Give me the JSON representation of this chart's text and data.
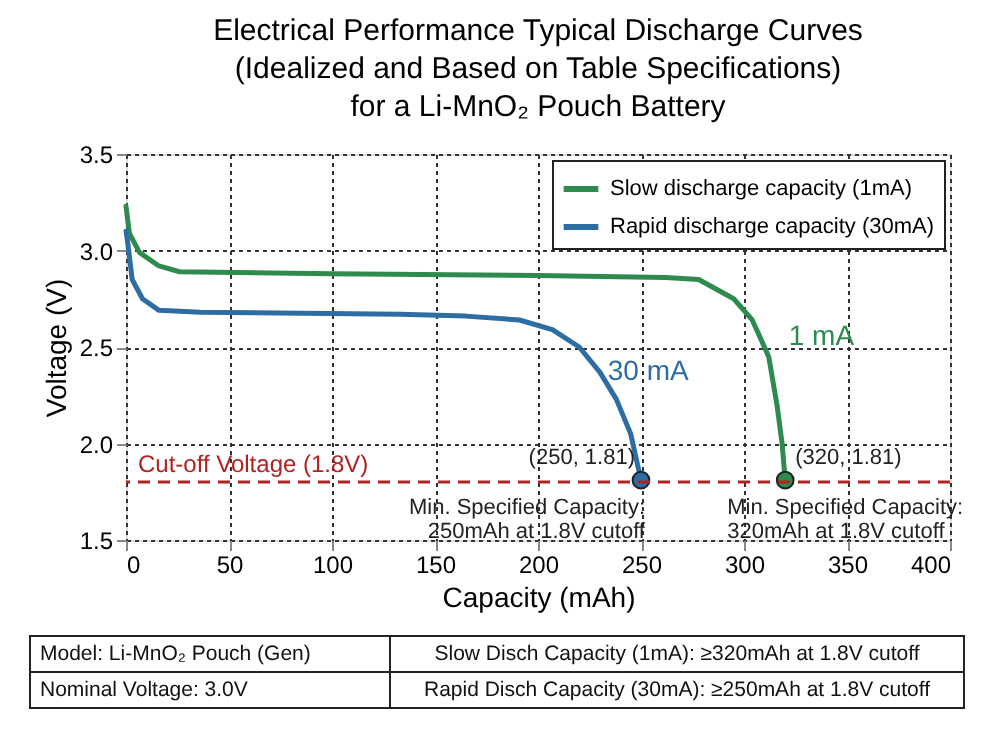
{
  "chart_data": {
    "type": "line",
    "title": "Electrical Performance Typical Discharge Curves\n(Idealized and Based on Table Specifications)\nfor a Li-MnO₂ Pouch Battery",
    "xlabel": "Capacity (mAh)",
    "ylabel": "Voltage (V)",
    "xlim": [
      0,
      400
    ],
    "xticks": [
      0,
      50,
      100,
      150,
      200,
      250,
      300,
      350,
      400
    ],
    "ylim": [
      1.5,
      3.5
    ],
    "yticks": [
      1.5,
      {
        "value": 2,
        "label": "2.0"
      },
      2.5,
      {
        "value": 3,
        "label": "3.0"
      },
      3.5
    ],
    "grid": true,
    "legend": "top right",
    "line_style": "solid",
    "marker": "none",
    "series": [
      {
        "name": "Slow discharge capacity (1mA)",
        "color": "#2e8b4e",
        "x": [
          0,
          1.6,
          6.5,
          16,
          26,
          100,
          200,
          262,
          278,
          295,
          304,
          312,
          316,
          318.5,
          320
        ],
        "values": [
          3.23,
          3.09,
          2.99,
          2.92,
          2.89,
          2.88,
          2.87,
          2.86,
          2.85,
          2.75,
          2.64,
          2.45,
          2.2,
          2.0,
          1.81
        ]
      },
      {
        "name": "Rapid discharge capacity (30mA)",
        "color": "#2e6da4",
        "x": [
          0,
          0.6,
          3,
          8,
          16,
          36,
          133,
          165,
          191,
          207,
          220,
          230,
          238,
          245,
          250
        ],
        "values": [
          3.1,
          3.06,
          2.85,
          2.75,
          2.69,
          2.68,
          2.67,
          2.66,
          2.64,
          2.59,
          2.5,
          2.37,
          2.23,
          2.05,
          1.81
        ]
      },
      {
        "type": "scatter",
        "marker": "circle",
        "x": [
          250,
          320
        ],
        "values": [
          1.81,
          1.81
        ],
        "colors": [
          "#2e6da4",
          "#2e8b4e"
        ]
      }
    ],
    "ref_lines": [
      {
        "axis": "y",
        "value": 1.8,
        "label": "Cut-off Voltage (1.8V)",
        "color": "#b22222",
        "line_style": "dashed"
      }
    ],
    "annotations": [
      {
        "text": "1 mA",
        "x": 312,
        "y": 2.45
      },
      {
        "text": "30 mA",
        "x": 230,
        "y": 2.37
      },
      {
        "text": "(250, 1.81)",
        "x": 250,
        "y": 1.81
      },
      {
        "text": "(320, 1.81)",
        "x": 320,
        "y": 1.81
      },
      {
        "text": "Min. Specified Capacity:\n250mAh at 1.8V cutoff",
        "x": 250,
        "y": 1.81
      },
      {
        "text": "Min. Specified Capacity:\n320mAh at 1.8V cutoff",
        "x": 320,
        "y": 1.81
      },
      "Model: Li-MnO₂ Pouch (Gen)",
      "Slow Disch Capacity (1mA):  ≥320mAh at 1.8V cutoff",
      "Nominal Voltage: 3.0V",
      "Rapid Disch Capacity (30mA): ≥250mAh at 1.8V cutoff"
    ]
  }
}
